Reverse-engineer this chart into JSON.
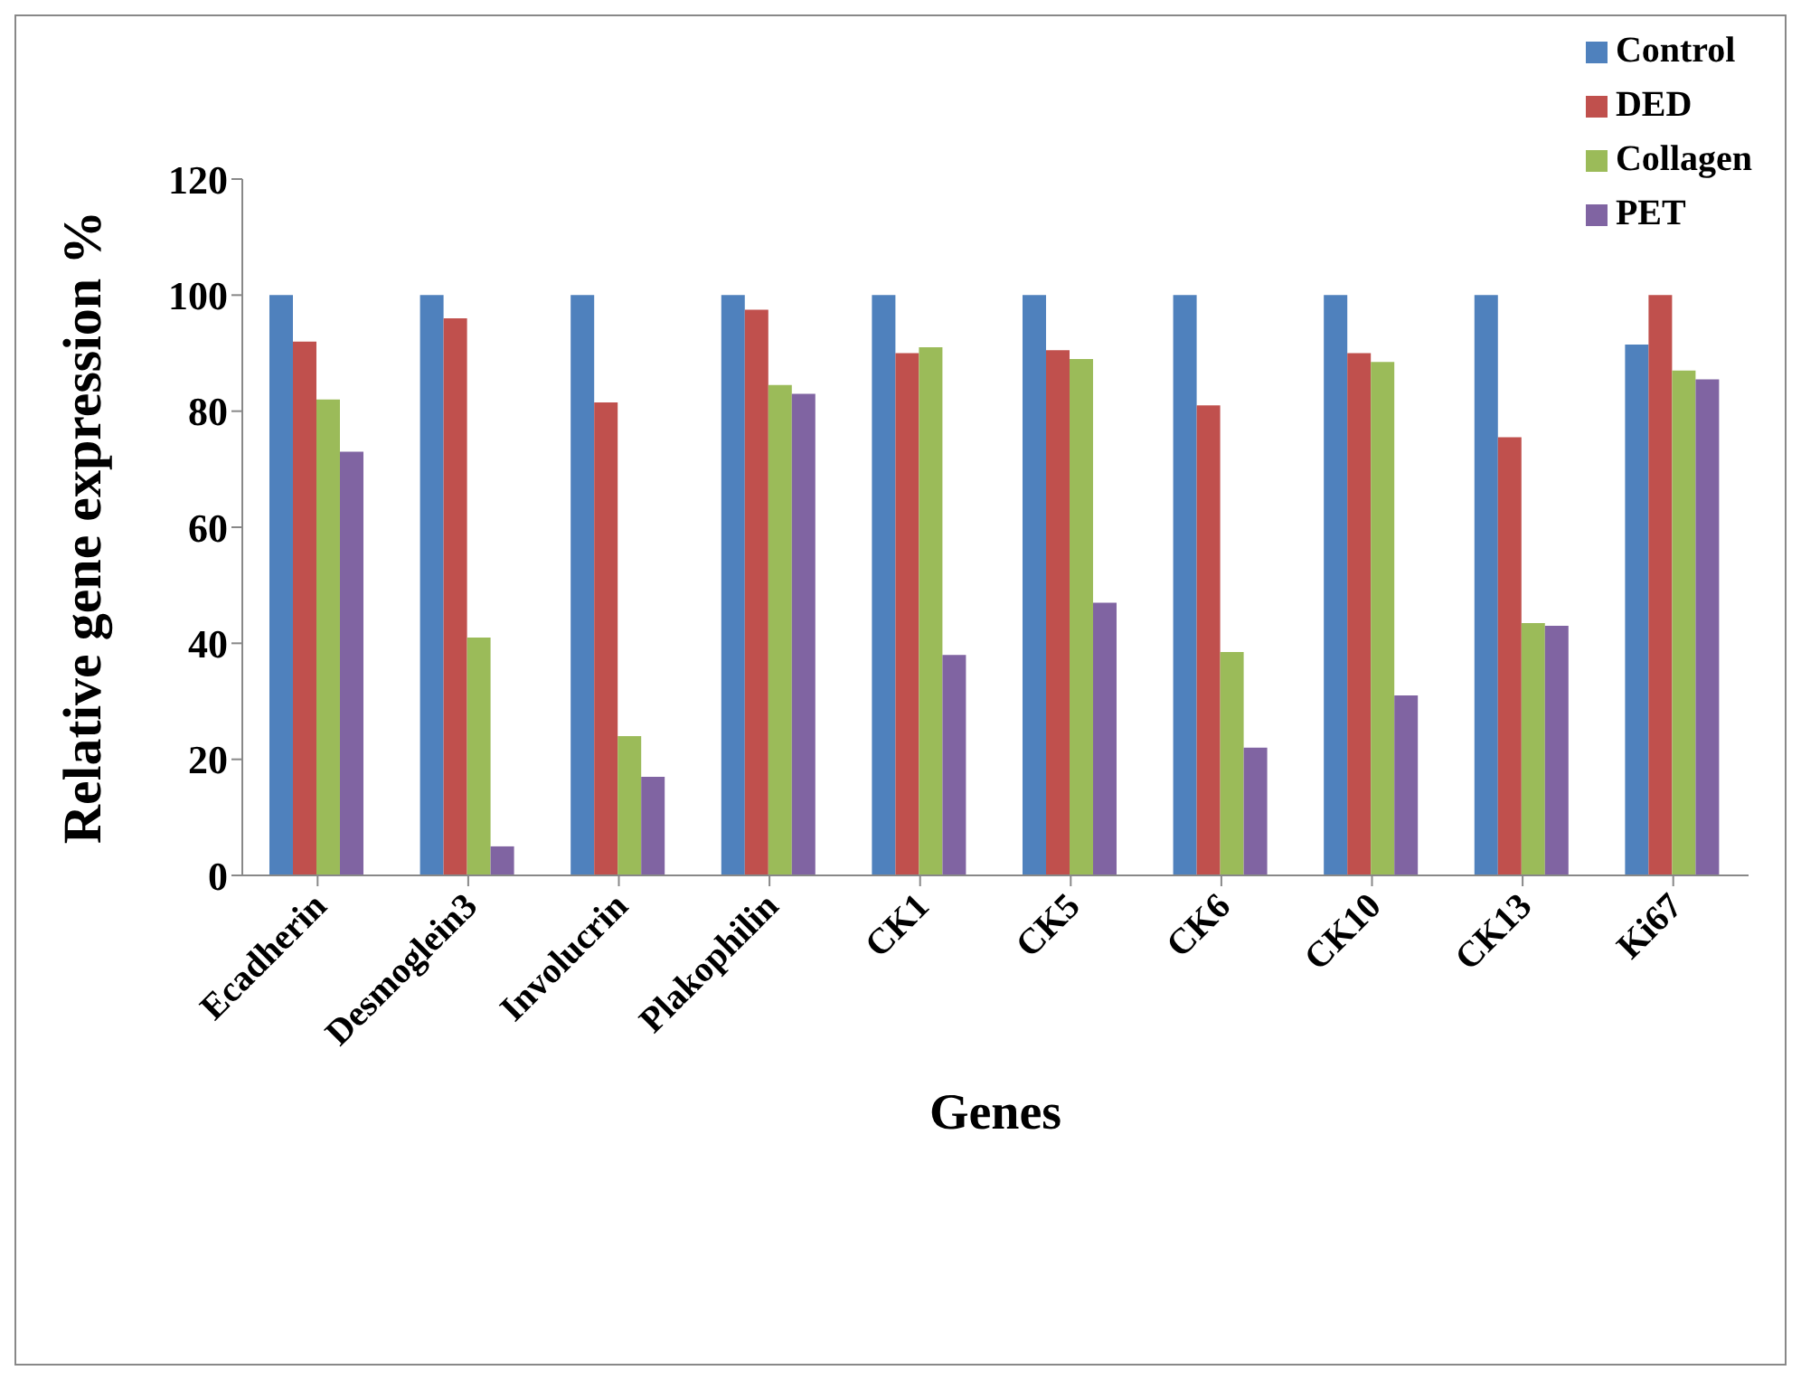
{
  "chart_data": {
    "type": "bar",
    "xlabel": "Genes",
    "ylabel": "Relative gene expression  %",
    "categories": [
      "Ecadherin",
      "Desmoglein3",
      "Involucrin",
      "Plakophilin",
      "CK1",
      "CK5",
      "CK6",
      "CK10",
      "CK13",
      "Ki67"
    ],
    "series": [
      {
        "name": "Control",
        "color": "#4f81bd",
        "values": [
          100,
          100,
          100,
          100,
          100,
          100,
          100,
          100,
          100,
          91.5
        ]
      },
      {
        "name": "DED",
        "color": "#c0504d",
        "values": [
          92,
          96,
          81.5,
          97.5,
          90,
          90.5,
          81,
          90,
          75.5,
          100
        ]
      },
      {
        "name": "Collagen",
        "color": "#9bbb59",
        "values": [
          82,
          41,
          24,
          84.5,
          91,
          89,
          38.5,
          88.5,
          43.5,
          87
        ]
      },
      {
        "name": "PET",
        "color": "#8064a2",
        "values": [
          73,
          5,
          17,
          83,
          38,
          47,
          22,
          31,
          43,
          85.5
        ]
      }
    ],
    "ylim": [
      0,
      120
    ],
    "yticks": [
      0,
      20,
      40,
      60,
      80,
      100,
      120
    ],
    "grid": false,
    "legend": "top right"
  }
}
